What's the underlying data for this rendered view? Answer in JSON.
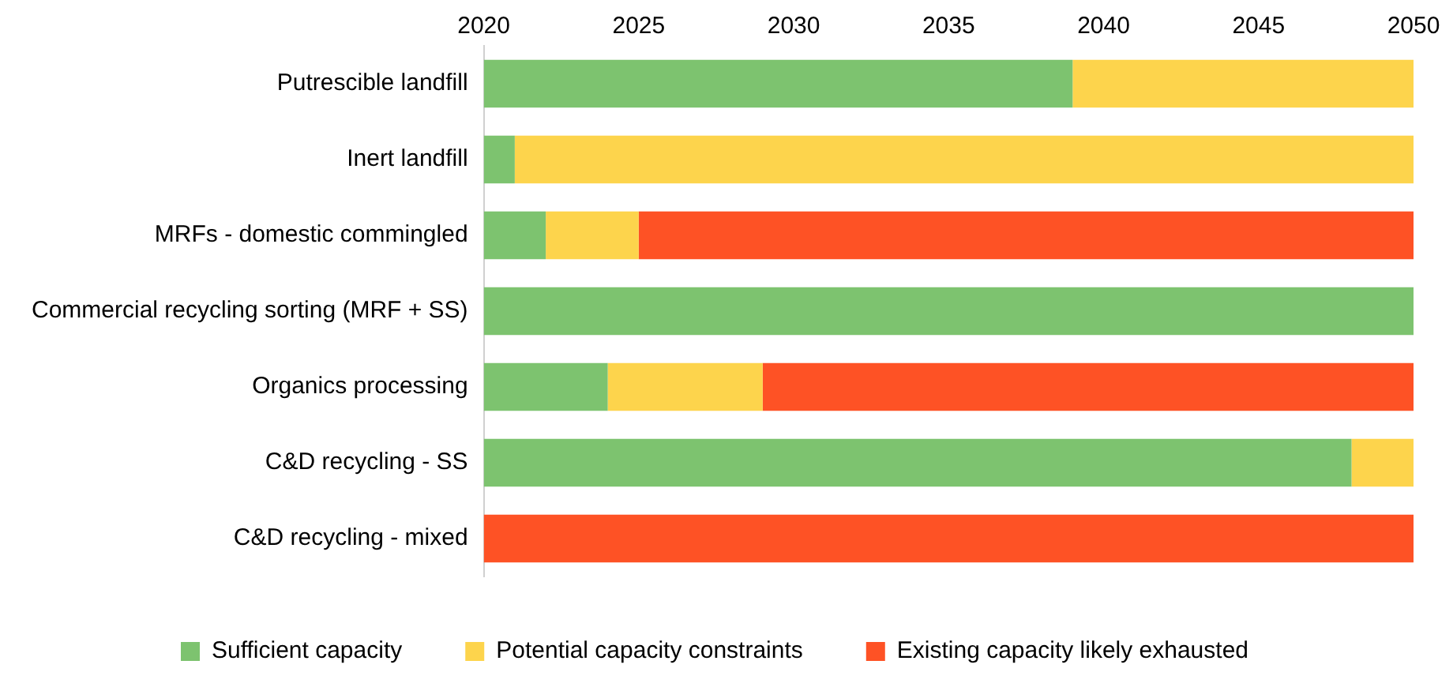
{
  "chart_data": {
    "type": "bar",
    "orientation": "horizontal",
    "categories": [
      "Putrescible landfill",
      "Inert landfill",
      "MRFs - domestic commingled",
      "Commercial recycling sorting (MRF + SS)",
      "Organics processing",
      "C&D recycling - SS",
      "C&D recycling - mixed"
    ],
    "series": [
      {
        "name": "Sufficient capacity",
        "color": "#7dc36f",
        "base": [
          2020,
          2020,
          2020,
          2020,
          2020,
          2020,
          null
        ],
        "values": [
          19,
          1,
          2,
          30,
          4,
          28,
          null
        ]
      },
      {
        "name": "Potential capacity constraints",
        "color": "#fdd44c",
        "base": [
          2039,
          2021,
          2022,
          null,
          2024,
          2048,
          null
        ],
        "values": [
          11,
          29,
          3,
          null,
          5,
          2,
          null
        ]
      },
      {
        "name": "Existing capacity likely exhausted",
        "color": "#fe5225",
        "base": [
          null,
          null,
          2025,
          null,
          2029,
          null,
          2020
        ],
        "values": [
          null,
          null,
          25,
          null,
          21,
          null,
          30
        ]
      }
    ],
    "xlim": [
      2020,
      2050
    ],
    "xticks": [
      2020,
      2025,
      2030,
      2035,
      2040,
      2045,
      2050
    ],
    "legend": "bottom"
  }
}
